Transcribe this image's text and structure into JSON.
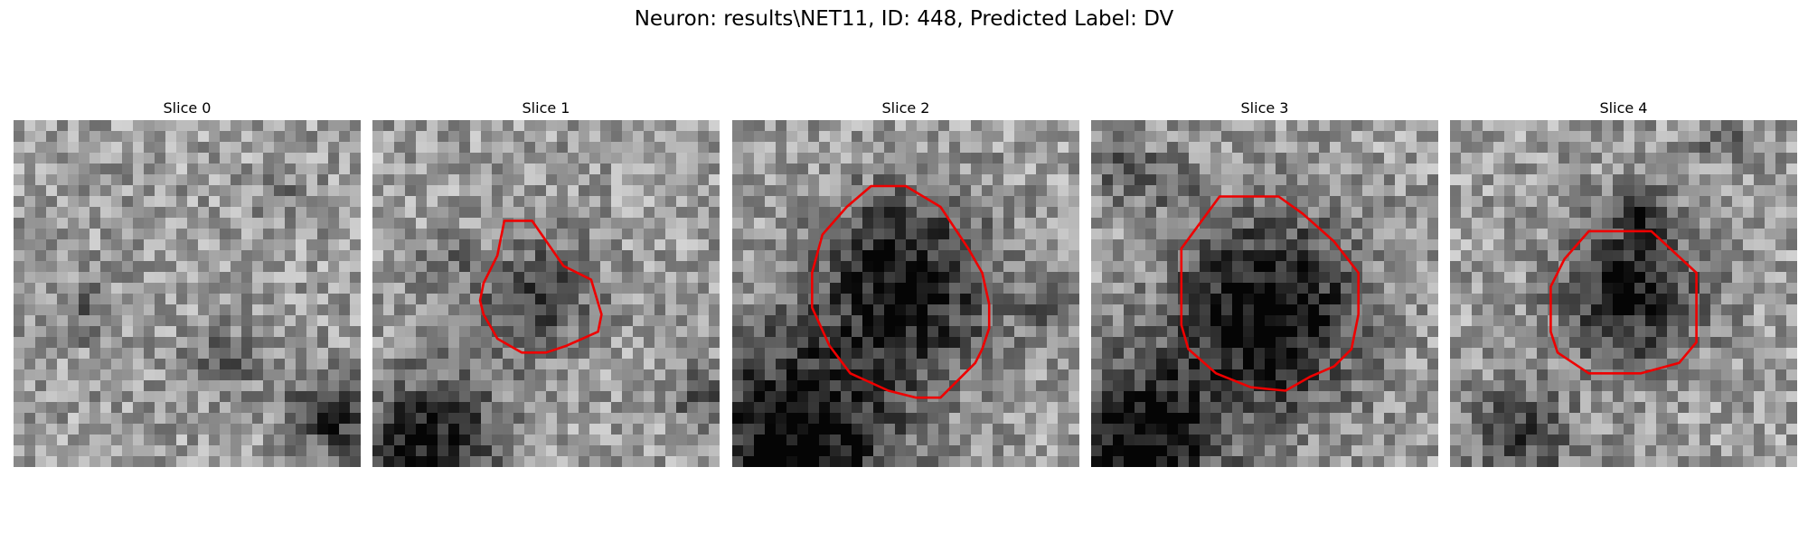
{
  "figure": {
    "title": "Neuron: results\\NET11, ID: 448, Predicted Label: DV",
    "contour_color": "#ee0000",
    "panels": [
      {
        "title": "Slice 0",
        "image": {
          "pattern": "noisy grayscale tissue, scattered dark patches",
          "seed": 7,
          "blobs": [
            [
              0.2,
              0.55,
              0.07,
              0.2
            ],
            [
              0.6,
              0.7,
              0.07,
              0.25
            ],
            [
              0.92,
              0.85,
              0.09,
              0.45
            ],
            [
              0.78,
              0.22,
              0.06,
              0.12
            ]
          ]
        },
        "contour": null
      },
      {
        "title": "Slice 1",
        "image": {
          "pattern": "noisy grayscale with small dark soma and dark lower-left",
          "seed": 19,
          "blobs": [
            [
              0.47,
              0.51,
              0.12,
              0.35
            ],
            [
              0.17,
              0.93,
              0.14,
              0.55
            ],
            [
              0.95,
              0.8,
              0.07,
              0.25
            ],
            [
              0.2,
              0.42,
              0.06,
              0.18
            ]
          ]
        },
        "contour": [
          [
            0.38,
            0.29
          ],
          [
            0.46,
            0.29
          ],
          [
            0.55,
            0.42
          ],
          [
            0.63,
            0.46
          ],
          [
            0.66,
            0.56
          ],
          [
            0.65,
            0.61
          ],
          [
            0.56,
            0.65
          ],
          [
            0.5,
            0.67
          ],
          [
            0.43,
            0.67
          ],
          [
            0.36,
            0.63
          ],
          [
            0.32,
            0.56
          ],
          [
            0.31,
            0.52
          ],
          [
            0.32,
            0.47
          ],
          [
            0.36,
            0.39
          ]
        ]
      },
      {
        "title": "Slice 2",
        "image": {
          "pattern": "large dark soma, dark lower-left region, bright band below",
          "seed": 31,
          "blobs": [
            [
              0.5,
              0.49,
              0.18,
              0.55
            ],
            [
              0.18,
              0.92,
              0.2,
              0.65
            ],
            [
              0.45,
              0.3,
              0.07,
              0.15
            ],
            [
              0.9,
              0.55,
              0.06,
              0.18
            ]
          ]
        },
        "contour": [
          [
            0.4,
            0.19
          ],
          [
            0.5,
            0.19
          ],
          [
            0.6,
            0.25
          ],
          [
            0.68,
            0.37
          ],
          [
            0.72,
            0.44
          ],
          [
            0.74,
            0.53
          ],
          [
            0.74,
            0.6
          ],
          [
            0.72,
            0.66
          ],
          [
            0.7,
            0.7
          ],
          [
            0.6,
            0.8
          ],
          [
            0.53,
            0.8
          ],
          [
            0.45,
            0.78
          ],
          [
            0.34,
            0.73
          ],
          [
            0.28,
            0.65
          ],
          [
            0.23,
            0.54
          ],
          [
            0.23,
            0.44
          ],
          [
            0.26,
            0.33
          ],
          [
            0.33,
            0.25
          ]
        ]
      },
      {
        "title": "Slice 3",
        "image": {
          "pattern": "large dark soma in centre, dark lower-left corner",
          "seed": 43,
          "blobs": [
            [
              0.51,
              0.56,
              0.19,
              0.65
            ],
            [
              0.15,
              0.93,
              0.16,
              0.6
            ],
            [
              0.1,
              0.15,
              0.07,
              0.25
            ],
            [
              0.24,
              0.18,
              0.05,
              0.2
            ]
          ]
        },
        "contour": [
          [
            0.37,
            0.22
          ],
          [
            0.54,
            0.22
          ],
          [
            0.61,
            0.27
          ],
          [
            0.7,
            0.35
          ],
          [
            0.77,
            0.44
          ],
          [
            0.77,
            0.56
          ],
          [
            0.75,
            0.66
          ],
          [
            0.7,
            0.71
          ],
          [
            0.63,
            0.74
          ],
          [
            0.56,
            0.78
          ],
          [
            0.46,
            0.77
          ],
          [
            0.36,
            0.73
          ],
          [
            0.28,
            0.66
          ],
          [
            0.26,
            0.59
          ],
          [
            0.26,
            0.37
          ]
        ]
      },
      {
        "title": "Slice 4",
        "image": {
          "pattern": "dark soma with dark streak above, pale surroundings",
          "seed": 59,
          "blobs": [
            [
              0.52,
              0.5,
              0.14,
              0.55
            ],
            [
              0.55,
              0.26,
              0.05,
              0.35
            ],
            [
              0.2,
              0.92,
              0.11,
              0.35
            ],
            [
              0.78,
              0.05,
              0.05,
              0.25
            ]
          ]
        },
        "contour": [
          [
            0.4,
            0.32
          ],
          [
            0.58,
            0.32
          ],
          [
            0.71,
            0.44
          ],
          [
            0.71,
            0.64
          ],
          [
            0.66,
            0.7
          ],
          [
            0.55,
            0.73
          ],
          [
            0.4,
            0.73
          ],
          [
            0.31,
            0.67
          ],
          [
            0.29,
            0.61
          ],
          [
            0.29,
            0.48
          ],
          [
            0.33,
            0.4
          ]
        ]
      }
    ]
  }
}
